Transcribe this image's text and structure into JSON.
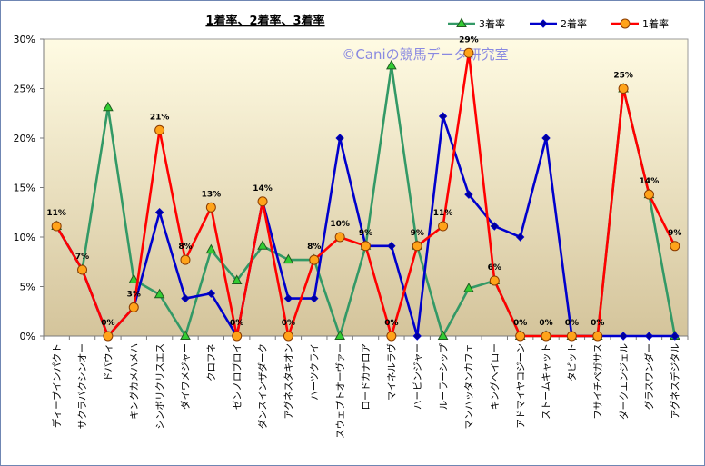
{
  "chart_data": {
    "type": "line",
    "title": "1着率、2着率、3着率",
    "watermark": "©Caniの競馬データ研究室",
    "categories": [
      "ディープインパクト",
      "サクラバクシンオー",
      "ドバウィ",
      "キングカメハメハ",
      "シンボリクリスエス",
      "ダイワメジャー",
      "クロフネ",
      "ゼンノロブロイ",
      "ダンスインザダーク",
      "アグネスタキオン",
      "ハーツクライ",
      "スウェプトオーヴァー",
      "ロードカナロア",
      "マイネルラヴ",
      "ハービンジャー",
      "ルーラーシップ",
      "マンハッタンカフェ",
      "キングヘイロー",
      "アドマイヤコジーン",
      "ストームキャット",
      "タピット",
      "フサイチペガサス",
      "ダークエンジェル",
      "グラスワンダー",
      "アグネスデジタル"
    ],
    "series": [
      {
        "name": "3着率",
        "color": "#339966",
        "marker": "triangle",
        "marker_fill": "#33cc33",
        "values": [
          11.1,
          6.7,
          23.1,
          5.7,
          4.2,
          0,
          8.7,
          5.6,
          9.1,
          7.7,
          7.7,
          0,
          9.1,
          27.3,
          9.1,
          0,
          4.8,
          5.6,
          0,
          0,
          0,
          0,
          25.0,
          14.3,
          0
        ]
      },
      {
        "name": "2着率",
        "color": "#0000cc",
        "marker": "diamond",
        "marker_fill": "#000099",
        "values": [
          11.1,
          6.7,
          0,
          2.9,
          12.5,
          3.8,
          4.3,
          0,
          13.6,
          3.8,
          3.8,
          20.0,
          9.1,
          9.1,
          0,
          22.2,
          14.3,
          11.1,
          10.0,
          20.0,
          0,
          0,
          0,
          0,
          0
        ]
      },
      {
        "name": "1着率",
        "color": "#ff0000",
        "marker": "circle",
        "marker_fill": "#ffa31a",
        "values": [
          11.1,
          6.7,
          0,
          2.9,
          20.8,
          7.7,
          13.0,
          0,
          13.6,
          0,
          7.7,
          10.0,
          9.1,
          0,
          9.1,
          11.1,
          28.6,
          5.6,
          0,
          0,
          0,
          0,
          25.0,
          14.3,
          9.1
        ],
        "data_labels": [
          "11%",
          "7%",
          "0%",
          "3%",
          "21%",
          "8%",
          "13%",
          "0%",
          "14%",
          "0%",
          "8%",
          "10%",
          "9%",
          "0%",
          "9%",
          "11%",
          "29%",
          "6%",
          "0%",
          "0%",
          "0%",
          "0%",
          "25%",
          "14%",
          "9%"
        ]
      }
    ],
    "ylim": [
      0,
      30
    ],
    "ytick_values": [
      0,
      5,
      10,
      15,
      20,
      25,
      30
    ],
    "ytick_labels": [
      "0%",
      "5%",
      "10%",
      "15%",
      "20%",
      "25%",
      "30%"
    ],
    "legend_position": "top-right",
    "grid": false,
    "plot_background": [
      "#fffbe3",
      "#d4c49b"
    ]
  }
}
